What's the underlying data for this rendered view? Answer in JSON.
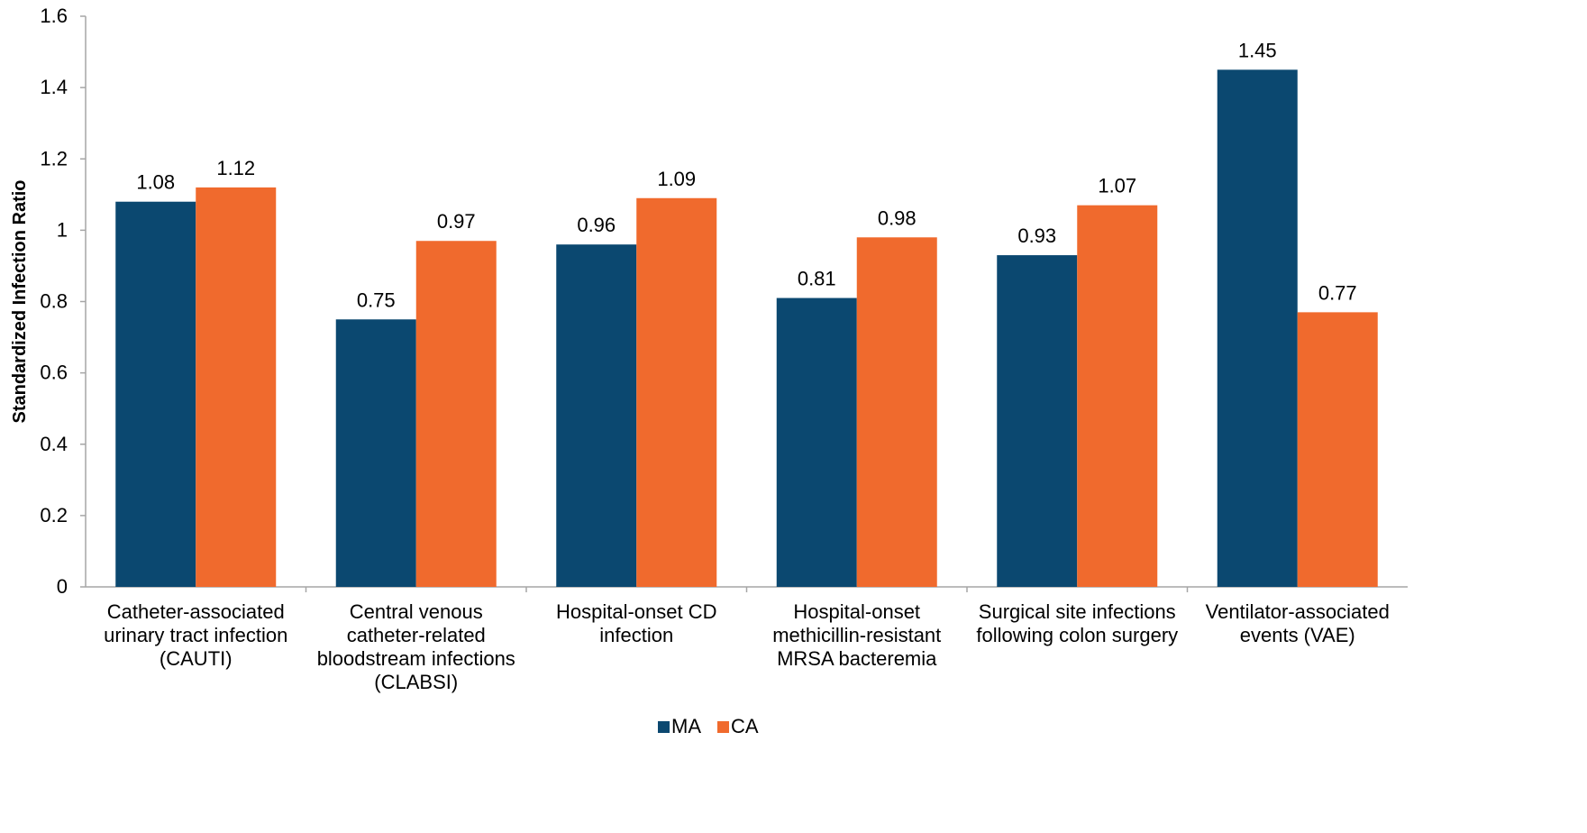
{
  "chart_data": {
    "type": "bar",
    "title": "",
    "xlabel": "",
    "ylabel": "Standardized Infection Ratio",
    "ylim": [
      0,
      1.6
    ],
    "yticks": [
      "0",
      "0.2",
      "0.4",
      "0.6",
      "0.8",
      "1",
      "1.2",
      "1.4",
      "1.6"
    ],
    "grid": false,
    "legend_position": "bottom",
    "categories": [
      [
        "Catheter-associated",
        "urinary tract infection",
        "(CAUTI)"
      ],
      [
        "Central venous",
        "catheter-related",
        "bloodstream infections",
        "(CLABSI)"
      ],
      [
        "Hospital-onset CD",
        "infection"
      ],
      [
        "Hospital-onset",
        "methicillin-resistant",
        "MRSA bacteremia"
      ],
      [
        "Surgical site infections",
        "following colon surgery"
      ],
      [
        "Ventilator-associated",
        "events (VAE)"
      ]
    ],
    "series": [
      {
        "name": "MA",
        "color": "#0b4870",
        "values": [
          1.08,
          0.75,
          0.96,
          0.81,
          0.93,
          1.45
        ],
        "labels": [
          "1.08",
          "0.75",
          "0.96",
          "0.81",
          "0.93",
          "1.45"
        ]
      },
      {
        "name": "CA",
        "color": "#f06a2d",
        "values": [
          1.12,
          0.97,
          1.09,
          0.98,
          1.07,
          0.77
        ],
        "labels": [
          "1.12",
          "0.97",
          "1.09",
          "0.98",
          "1.07",
          "0.77"
        ]
      }
    ]
  }
}
